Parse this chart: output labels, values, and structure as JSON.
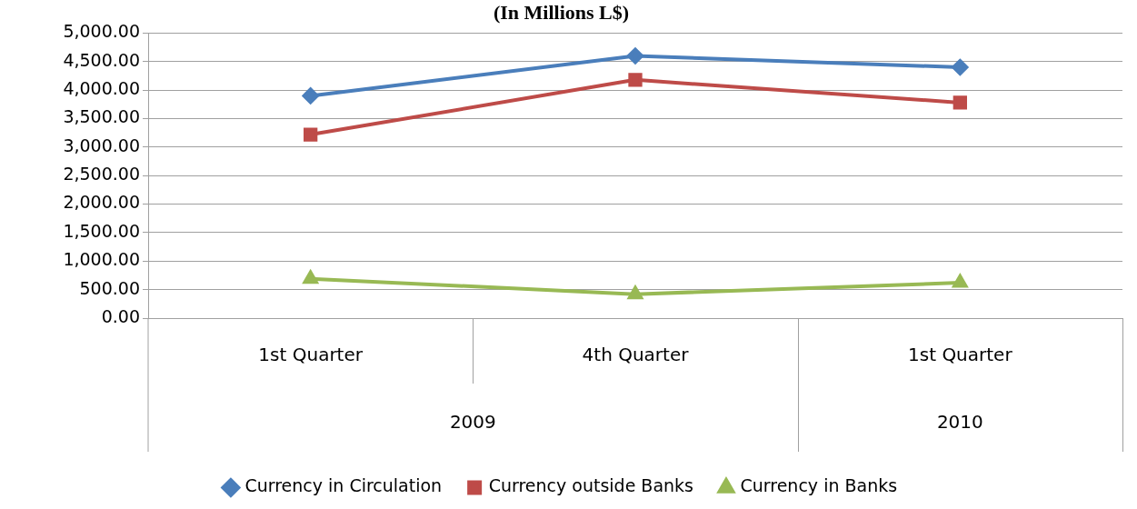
{
  "chart_data": {
    "type": "line",
    "title": "(In Millions L$)",
    "categories": [
      "1st Quarter",
      "4th Quarter",
      "1st Quarter"
    ],
    "annotations": [
      "2009",
      "2010"
    ],
    "series": [
      {
        "name": "Currency in Circulation",
        "color": "#4a7ebb",
        "marker": "diamond",
        "values": [
          3900,
          4600,
          4400
        ]
      },
      {
        "name": "Currency outside Banks",
        "color": "#be4b48",
        "marker": "square",
        "values": [
          3220,
          4180,
          3780
        ]
      },
      {
        "name": "Currency in Banks",
        "color": "#98b954",
        "marker": "triangle",
        "values": [
          690,
          420,
          620
        ]
      }
    ],
    "ylim": [
      0,
      5000
    ],
    "yticks": [
      {
        "value": 0,
        "label": "0.00"
      },
      {
        "value": 500,
        "label": "500.00"
      },
      {
        "value": 1000,
        "label": "1,000.00"
      },
      {
        "value": 1500,
        "label": "1,500.00"
      },
      {
        "value": 2000,
        "label": "2,000.00"
      },
      {
        "value": 2500,
        "label": "2,500.00"
      },
      {
        "value": 3000,
        "label": "3,000.00"
      },
      {
        "value": 3500,
        "label": "3,500.00"
      },
      {
        "value": 4000,
        "label": "4,000.00"
      },
      {
        "value": 4500,
        "label": "4,500.00"
      },
      {
        "value": 5000,
        "label": "5,000.00"
      }
    ],
    "grid": "y",
    "legend": "bottom",
    "line_style": "solid"
  }
}
